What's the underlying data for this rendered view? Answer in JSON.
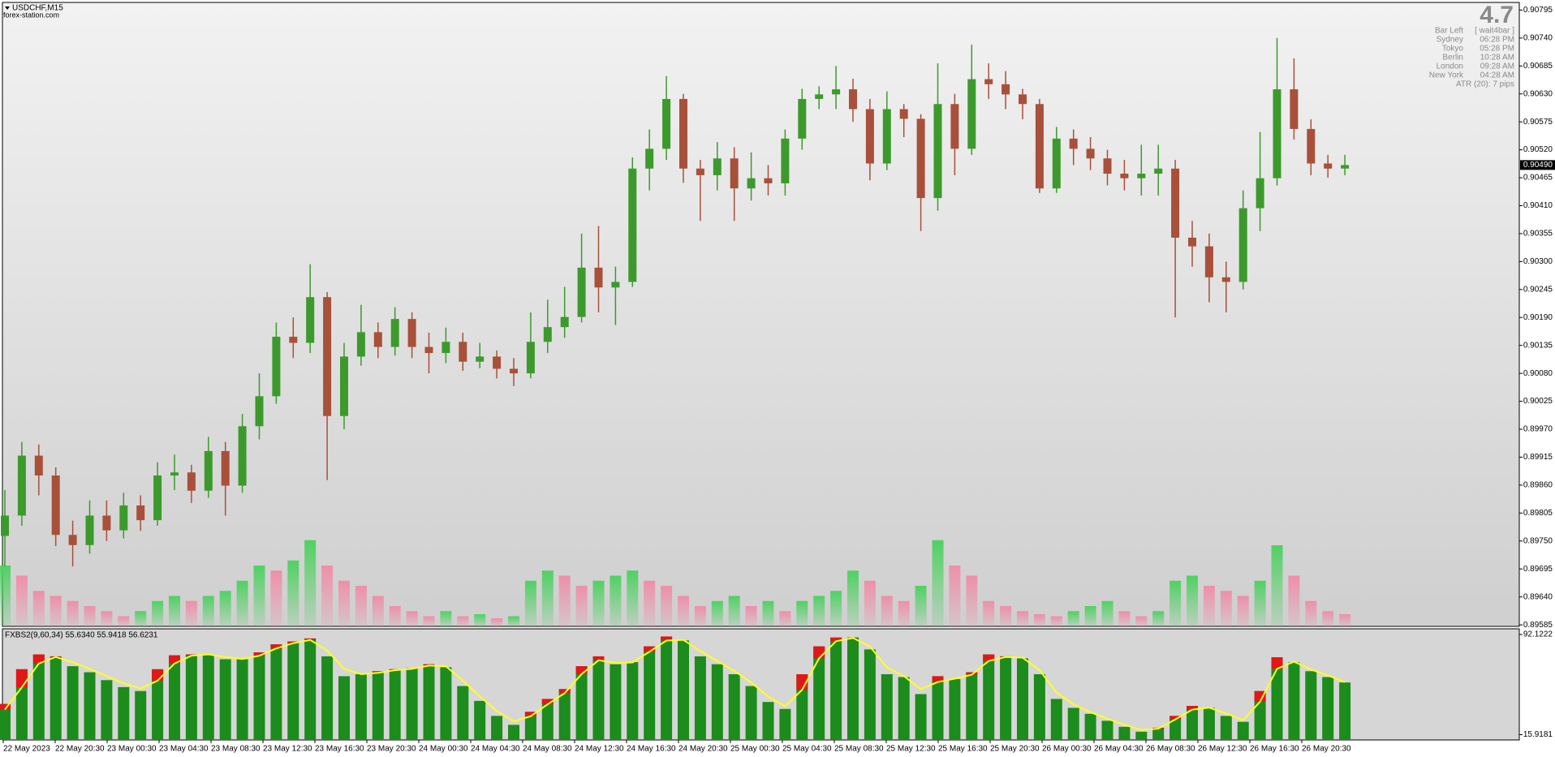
{
  "header": {
    "symbol": "USDCHF,M15",
    "site": "forex-station.com"
  },
  "info_panel": {
    "spread": 4.7,
    "rows": [
      [
        "Bar Left",
        "[ wait4bar ]"
      ],
      [
        "Sydney",
        "06:28 PM"
      ],
      [
        "Tokyo",
        "05:28 PM"
      ],
      [
        "Berlin",
        "10:28 AM"
      ],
      [
        "London",
        "09:28 AM"
      ],
      [
        "New York",
        "04:28 AM"
      ]
    ],
    "atr": "ATR (20): 7 pips"
  },
  "time_axis": [
    "22 May 2023",
    "22 May 20:30",
    "23 May 00:30",
    "23 May 04:30",
    "23 May 08:30",
    "23 May 12:30",
    "23 May 16:30",
    "23 May 20:30",
    "24 May 00:30",
    "24 May 04:30",
    "24 May 08:30",
    "24 May 12:30",
    "24 May 16:30",
    "24 May 20:30",
    "25 May 00:30",
    "25 May 04:30",
    "25 May 08:30",
    "25 May 12:30",
    "25 May 16:30",
    "25 May 20:30",
    "26 May 00:30",
    "26 May 04:30",
    "26 May 08:30",
    "26 May 12:30",
    "26 May 16:30",
    "26 May 20:30"
  ],
  "chart_data": [
    {
      "type": "candlestick",
      "open": [
        0.8976,
        0.898,
        0.89918,
        0.89879,
        0.89762,
        0.89742,
        0.898,
        0.89771,
        0.8982,
        0.89791,
        0.89879,
        0.89885,
        0.89849,
        0.89927,
        0.89859,
        0.89976,
        0.90035,
        0.90152,
        0.9014,
        0.9023,
        0.89996,
        0.90113,
        0.90161,
        0.90132,
        0.90187,
        0.90132,
        0.9012,
        0.90142,
        0.90103,
        0.90113,
        0.90089,
        0.9008,
        0.90142,
        0.90171,
        0.90191,
        0.90288,
        0.90249,
        0.9026,
        0.90483,
        0.90522,
        0.9062,
        0.90483,
        0.9047,
        0.90503,
        0.90444,
        0.90464,
        0.90454,
        0.90542,
        0.9062,
        0.90629,
        0.90639,
        0.906,
        0.90493,
        0.906,
        0.90581,
        0.90425,
        0.9061,
        0.90522,
        0.90659,
        0.90649,
        0.90629,
        0.9061,
        0.90444,
        0.90542,
        0.90522,
        0.90503,
        0.90473,
        0.90464,
        0.90473,
        0.90483,
        0.90347,
        0.9033,
        0.90269,
        0.9026,
        0.90405,
        0.90464,
        0.90639,
        0.90561,
        0.90493,
        0.90483
      ],
      "high": [
        0.8985,
        0.89945,
        0.8994,
        0.89895,
        0.8979,
        0.8983,
        0.8983,
        0.89845,
        0.8984,
        0.89905,
        0.8992,
        0.899,
        0.89955,
        0.89945,
        0.9,
        0.9008,
        0.9018,
        0.9019,
        0.90295,
        0.9024,
        0.9014,
        0.90215,
        0.9018,
        0.9021,
        0.902,
        0.9016,
        0.9017,
        0.9016,
        0.9014,
        0.90125,
        0.9011,
        0.902,
        0.90225,
        0.9025,
        0.90355,
        0.9037,
        0.9029,
        0.90505,
        0.9056,
        0.90665,
        0.9063,
        0.905,
        0.90535,
        0.90525,
        0.90515,
        0.9049,
        0.9056,
        0.9064,
        0.90645,
        0.90685,
        0.9066,
        0.9062,
        0.90635,
        0.9061,
        0.9059,
        0.9069,
        0.9063,
        0.90727,
        0.9069,
        0.90675,
        0.9064,
        0.9062,
        0.90565,
        0.9056,
        0.90545,
        0.9052,
        0.905,
        0.9053,
        0.9053,
        0.905,
        0.9038,
        0.90355,
        0.903,
        0.9044,
        0.90555,
        0.9074,
        0.907,
        0.9058,
        0.9051,
        0.9051
      ],
      "low": [
        0.897,
        0.8978,
        0.8984,
        0.8974,
        0.897,
        0.89725,
        0.8975,
        0.89755,
        0.8977,
        0.8978,
        0.8985,
        0.89825,
        0.89835,
        0.898,
        0.89845,
        0.8995,
        0.9002,
        0.9011,
        0.9012,
        0.8987,
        0.8997,
        0.90095,
        0.9011,
        0.90115,
        0.9011,
        0.9008,
        0.901,
        0.90085,
        0.9009,
        0.9007,
        0.90055,
        0.9007,
        0.9012,
        0.9015,
        0.9018,
        0.902,
        0.90175,
        0.9025,
        0.9044,
        0.905,
        0.90455,
        0.9038,
        0.9044,
        0.9038,
        0.9042,
        0.9043,
        0.9043,
        0.9052,
        0.906,
        0.906,
        0.90575,
        0.9046,
        0.9048,
        0.90545,
        0.9036,
        0.904,
        0.9047,
        0.9051,
        0.9062,
        0.906,
        0.9058,
        0.90435,
        0.90435,
        0.9049,
        0.9048,
        0.9045,
        0.9044,
        0.9043,
        0.9043,
        0.9019,
        0.9029,
        0.9022,
        0.902,
        0.90245,
        0.9036,
        0.9045,
        0.9054,
        0.9047,
        0.90465,
        0.9047
      ],
      "close": [
        0.898,
        0.89918,
        0.89879,
        0.89762,
        0.89742,
        0.898,
        0.89771,
        0.8982,
        0.89791,
        0.89879,
        0.89885,
        0.89849,
        0.89927,
        0.89859,
        0.89976,
        0.90035,
        0.90152,
        0.9014,
        0.9023,
        0.89996,
        0.90113,
        0.90161,
        0.90132,
        0.90187,
        0.90132,
        0.9012,
        0.90142,
        0.90103,
        0.90113,
        0.90089,
        0.9008,
        0.90142,
        0.90171,
        0.90191,
        0.90288,
        0.90249,
        0.9026,
        0.90483,
        0.90522,
        0.9062,
        0.90483,
        0.9047,
        0.90503,
        0.90444,
        0.90464,
        0.90454,
        0.90542,
        0.9062,
        0.90629,
        0.90639,
        0.906,
        0.90493,
        0.906,
        0.90581,
        0.90425,
        0.9061,
        0.90522,
        0.90659,
        0.90649,
        0.90629,
        0.9061,
        0.90444,
        0.90542,
        0.90522,
        0.90503,
        0.90473,
        0.90464,
        0.90473,
        0.90483,
        0.90347,
        0.9033,
        0.90269,
        0.9026,
        0.90405,
        0.90464,
        0.90639,
        0.90561,
        0.90493,
        0.90483,
        0.9049
      ],
      "up_color": "#3c9a2c",
      "down_color": "#a8503a",
      "volume": [
        60,
        50,
        35,
        30,
        25,
        20,
        15,
        10,
        15,
        25,
        30,
        25,
        30,
        35,
        45,
        60,
        55,
        65,
        85,
        60,
        45,
        40,
        30,
        20,
        15,
        10,
        15,
        10,
        12,
        8,
        10,
        45,
        55,
        50,
        40,
        45,
        50,
        55,
        45,
        40,
        30,
        20,
        25,
        30,
        20,
        25,
        15,
        25,
        30,
        35,
        55,
        45,
        30,
        25,
        40,
        85,
        60,
        50,
        25,
        20,
        15,
        12,
        10,
        15,
        20,
        25,
        15,
        10,
        15,
        45,
        50,
        40,
        35,
        30,
        45,
        80,
        50,
        25,
        15,
        12
      ],
      "volume_up_color": "#4fd162",
      "volume_down_color": "#ee8fa8",
      "ylim": [
        0.89582,
        0.9081
      ],
      "yticks": [
        0.90795,
        {
          "value": 0.9074,
          "label": "0.90740"
        },
        0.90685,
        {
          "value": 0.9063,
          "label": "0.90630"
        },
        0.90575,
        {
          "value": 0.9052,
          "label": "0.90520"
        },
        0.90465,
        {
          "value": 0.9041,
          "label": "0.90410"
        },
        0.90355,
        {
          "value": 0.903,
          "label": "0.90300"
        },
        0.90245,
        {
          "value": 0.9019,
          "label": "0.90190"
        },
        0.90135,
        {
          "value": 0.9008,
          "label": "0.90080"
        },
        0.90025,
        {
          "value": 0.8997,
          "label": "0.89970"
        },
        0.89915,
        {
          "value": 0.8986,
          "label": "0.89860"
        },
        0.89805,
        {
          "value": 0.8975,
          "label": "0.89750"
        },
        0.89695,
        {
          "value": 0.8964,
          "label": "0.89640"
        },
        0.89585
      ],
      "current_price": {
        "value": 0.9049,
        "label": "0.90490"
      }
    },
    {
      "type": "histogram-line",
      "title": "FXBS2(9,60,34) 55.6340 55.9418 56.6231",
      "values": [
        39.3,
        65.7,
        77.0,
        75.5,
        68.0,
        63.4,
        57.4,
        52.1,
        49.1,
        65.7,
        76.3,
        77.0,
        77.0,
        73.3,
        73.3,
        78.5,
        84.6,
        86.8,
        89.1,
        75.5,
        60.4,
        61.9,
        64.2,
        65.7,
        66.5,
        69.5,
        67.2,
        52.9,
        41.6,
        30.2,
        23.4,
        33.3,
        43.1,
        50.6,
        68.0,
        75.5,
        69.5,
        71.0,
        83.1,
        90.6,
        87.6,
        75.5,
        69.5,
        61.9,
        52.9,
        40.8,
        35.5,
        61.9,
        83.1,
        89.8,
        89.8,
        80.8,
        61.9,
        59.7,
        46.8,
        60.4,
        58.2,
        63.4,
        77.0,
        75.5,
        74.0,
        61.9,
        43.1,
        36.3,
        31.8,
        26.5,
        21.9,
        18.2,
        21.2,
        30.2,
        37.8,
        36.3,
        30.2,
        25.7,
        49.1,
        74.8,
        71.0,
        64.2,
        59.7,
        55.63
      ],
      "signal": [
        35.0,
        52.0,
        70.0,
        75.0,
        71.0,
        66.0,
        60.5,
        55.0,
        51.0,
        57.0,
        70.0,
        76.0,
        77.0,
        75.0,
        73.5,
        76.0,
        81.5,
        85.5,
        88.0,
        80.0,
        66.0,
        62.0,
        63.0,
        65.0,
        66.0,
        68.5,
        68.0,
        57.0,
        45.0,
        34.0,
        26.0,
        30.0,
        39.0,
        47.5,
        62.0,
        72.5,
        70.5,
        70.8,
        79.0,
        87.5,
        88.0,
        79.5,
        72.0,
        64.5,
        55.5,
        45.0,
        37.5,
        50.0,
        74.0,
        87.0,
        89.5,
        83.0,
        67.0,
        60.5,
        50.5,
        56.0,
        58.5,
        61.5,
        72.0,
        75.0,
        74.5,
        65.0,
        48.0,
        39.0,
        33.0,
        28.0,
        23.5,
        19.5,
        20.5,
        27.5,
        35.0,
        36.5,
        32.0,
        27.0,
        41.0,
        66.0,
        71.5,
        65.5,
        61.0,
        55.94
      ],
      "color": "#1c8c1c",
      "rise_color": "#e01818",
      "line_color": "#ffff22",
      "ylim": [
        11.91,
        96.44
      ],
      "yticks": [
        92.1222,
        15.9181
      ]
    }
  ]
}
